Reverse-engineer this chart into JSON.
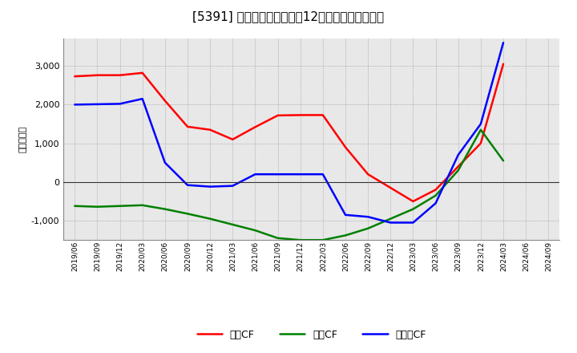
{
  "title_plain": "[5391] キャッシュフローの12か月移動合計の推移",
  "ylabel": "（百万円）",
  "background_color": "#ffffff",
  "plot_bg_color": "#e8e8e8",
  "x_labels": [
    "2019/06",
    "2019/09",
    "2019/12",
    "2020/03",
    "2020/06",
    "2020/09",
    "2020/12",
    "2021/03",
    "2021/06",
    "2021/09",
    "2021/12",
    "2022/03",
    "2022/06",
    "2022/09",
    "2022/12",
    "2023/03",
    "2023/06",
    "2023/09",
    "2023/12",
    "2024/03",
    "2024/06",
    "2024/09"
  ],
  "operating_cf": [
    2730,
    2760,
    2760,
    2820,
    2100,
    1430,
    1350,
    1100,
    1420,
    1720,
    1730,
    1730,
    900,
    200,
    -150,
    -500,
    -200,
    400,
    1000,
    3050,
    null,
    null
  ],
  "investing_cf": [
    -620,
    -640,
    -620,
    -600,
    -700,
    -820,
    -950,
    -1100,
    -1250,
    -1450,
    -1500,
    -1500,
    -1380,
    -1200,
    -950,
    -700,
    -350,
    300,
    1350,
    550,
    null,
    null
  ],
  "free_cf": [
    2000,
    2010,
    2020,
    2150,
    500,
    -80,
    -120,
    -100,
    200,
    200,
    200,
    200,
    -850,
    -900,
    -1050,
    -1050,
    -550,
    700,
    1500,
    3600,
    null,
    null
  ],
  "operating_color": "#ff0000",
  "investing_color": "#008000",
  "free_color": "#0000ff",
  "ylim": [
    -1500,
    3700
  ],
  "yticks": [
    -1000,
    0,
    1000,
    2000,
    3000
  ],
  "legend_labels": [
    "営業CF",
    "投資CF",
    "フリーCF"
  ]
}
